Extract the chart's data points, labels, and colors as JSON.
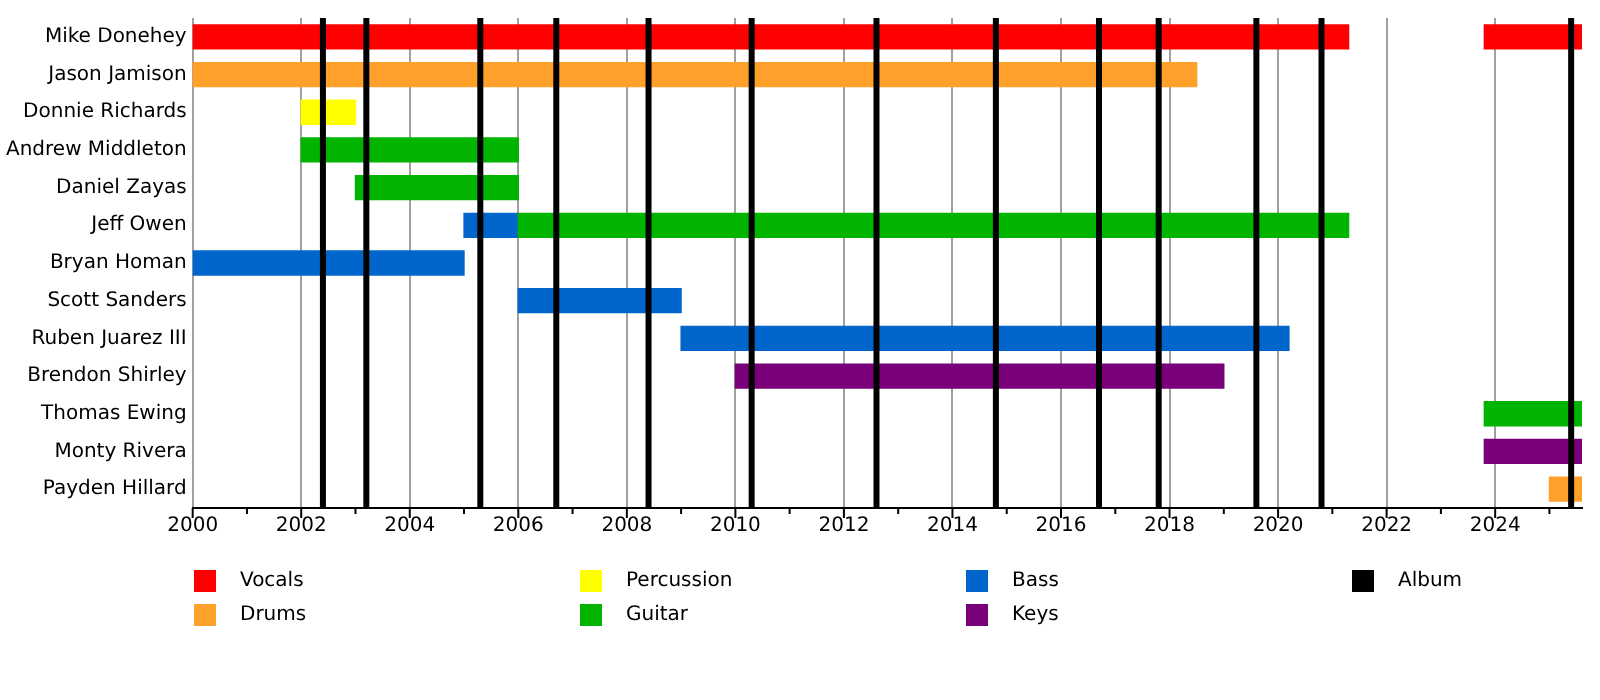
{
  "chart_data": {
    "type": "bar",
    "orientation": "horizontal",
    "categories": [
      "Mike Donehey",
      "Jason Jamison",
      "Donnie Richards",
      "Andrew Middleton",
      "Daniel Zayas",
      "Jeff Owen",
      "Bryan Homan",
      "Scott Sanders",
      "Ruben Juarez III",
      "Brendon Shirley",
      "Thomas Ewing",
      "Monty Rivera",
      "Payden Hillard"
    ],
    "series": [
      {
        "name": "Vocals",
        "color": "#ff0000",
        "base": [
          2000,
          null,
          null,
          null,
          null,
          null,
          null,
          null,
          null,
          null,
          null,
          null,
          null
        ],
        "values": [
          21.3,
          null,
          null,
          null,
          null,
          null,
          null,
          null,
          null,
          null,
          null,
          null,
          null
        ]
      },
      {
        "color": "#ff0000",
        "base": [
          2023.8,
          null,
          null,
          null,
          null,
          null,
          null,
          null,
          null,
          null,
          null,
          null,
          null
        ],
        "values": [
          1.8,
          null,
          null,
          null,
          null,
          null,
          null,
          null,
          null,
          null,
          null,
          null,
          null
        ]
      },
      {
        "name": "Drums",
        "color": "#ffa02a",
        "base": [
          null,
          2000,
          null,
          null,
          null,
          null,
          null,
          null,
          null,
          null,
          null,
          null,
          2025
        ],
        "values": [
          null,
          18.5,
          null,
          null,
          null,
          null,
          null,
          null,
          null,
          null,
          null,
          null,
          0.6
        ]
      },
      {
        "name": "Percussion",
        "color": "#ffff00",
        "base": [
          null,
          null,
          2002,
          null,
          null,
          null,
          null,
          null,
          null,
          null,
          null,
          null,
          null
        ],
        "values": [
          null,
          null,
          1,
          null,
          null,
          null,
          null,
          null,
          null,
          null,
          null,
          null,
          null
        ]
      },
      {
        "name": "Guitar",
        "color": "#00b400",
        "base": [
          null,
          null,
          null,
          2002,
          2003,
          2006,
          null,
          null,
          null,
          null,
          2023.8,
          null,
          null
        ],
        "values": [
          null,
          null,
          null,
          4,
          3,
          15.3,
          null,
          null,
          null,
          null,
          1.8,
          null,
          null
        ]
      },
      {
        "name": "Bass",
        "color": "#0066cc",
        "base": [
          null,
          null,
          null,
          null,
          null,
          2005,
          2000,
          2006,
          2009,
          null,
          null,
          null,
          null
        ],
        "values": [
          null,
          null,
          null,
          null,
          null,
          1,
          5,
          3,
          11.2,
          null,
          null,
          null,
          null
        ]
      },
      {
        "name": "Keys",
        "color": "#780078",
        "base": [
          null,
          null,
          null,
          null,
          null,
          null,
          null,
          null,
          null,
          2010,
          null,
          2023.8,
          null
        ],
        "values": [
          null,
          null,
          null,
          null,
          null,
          null,
          null,
          null,
          null,
          9,
          null,
          1.8,
          null
        ]
      }
    ],
    "xlim": [
      2000,
      2025.6
    ],
    "xticks": [
      2000,
      {
        "value": 2001,
        "label": null
      },
      2002,
      {
        "value": 2003,
        "label": null
      },
      2004,
      {
        "value": 2005,
        "label": null
      },
      2006,
      {
        "value": 2007,
        "label": null
      },
      2008,
      {
        "value": 2009,
        "label": null
      },
      2010,
      {
        "value": 2011,
        "label": null
      },
      2012,
      {
        "value": 2013,
        "label": null
      },
      2014,
      {
        "value": 2015,
        "label": null
      },
      2016,
      {
        "value": 2017,
        "label": null
      },
      2018,
      {
        "value": 2019,
        "label": null
      },
      2020,
      {
        "value": 2021,
        "label": null
      },
      2022,
      {
        "value": 2023,
        "label": null
      },
      2024,
      {
        "value": 2025,
        "label": null
      }
    ],
    "grid": "x",
    "legend": "bottom",
    "ref_lines": [
      {
        "axis": "x",
        "value": 2002.4,
        "label": "Album",
        "color": "#000000"
      },
      {
        "axis": "x",
        "value": 2003.2,
        "color": "#000000"
      },
      {
        "axis": "x",
        "value": 2005.3,
        "color": "#000000"
      },
      {
        "axis": "x",
        "value": 2006.7,
        "color": "#000000"
      },
      {
        "axis": "x",
        "value": 2008.4,
        "color": "#000000"
      },
      {
        "axis": "x",
        "value": 2010.3,
        "color": "#000000"
      },
      {
        "axis": "x",
        "value": 2012.6,
        "color": "#000000"
      },
      {
        "axis": "x",
        "value": 2014.8,
        "color": "#000000"
      },
      {
        "axis": "x",
        "value": 2016.7,
        "color": "#000000"
      },
      {
        "axis": "x",
        "value": 2017.8,
        "color": "#000000"
      },
      {
        "axis": "x",
        "value": 2019.6,
        "color": "#000000"
      },
      {
        "axis": "x",
        "value": 2020.8,
        "color": "#000000"
      },
      {
        "axis": "x",
        "value": 2025.4,
        "color": "#000000"
      }
    ]
  }
}
